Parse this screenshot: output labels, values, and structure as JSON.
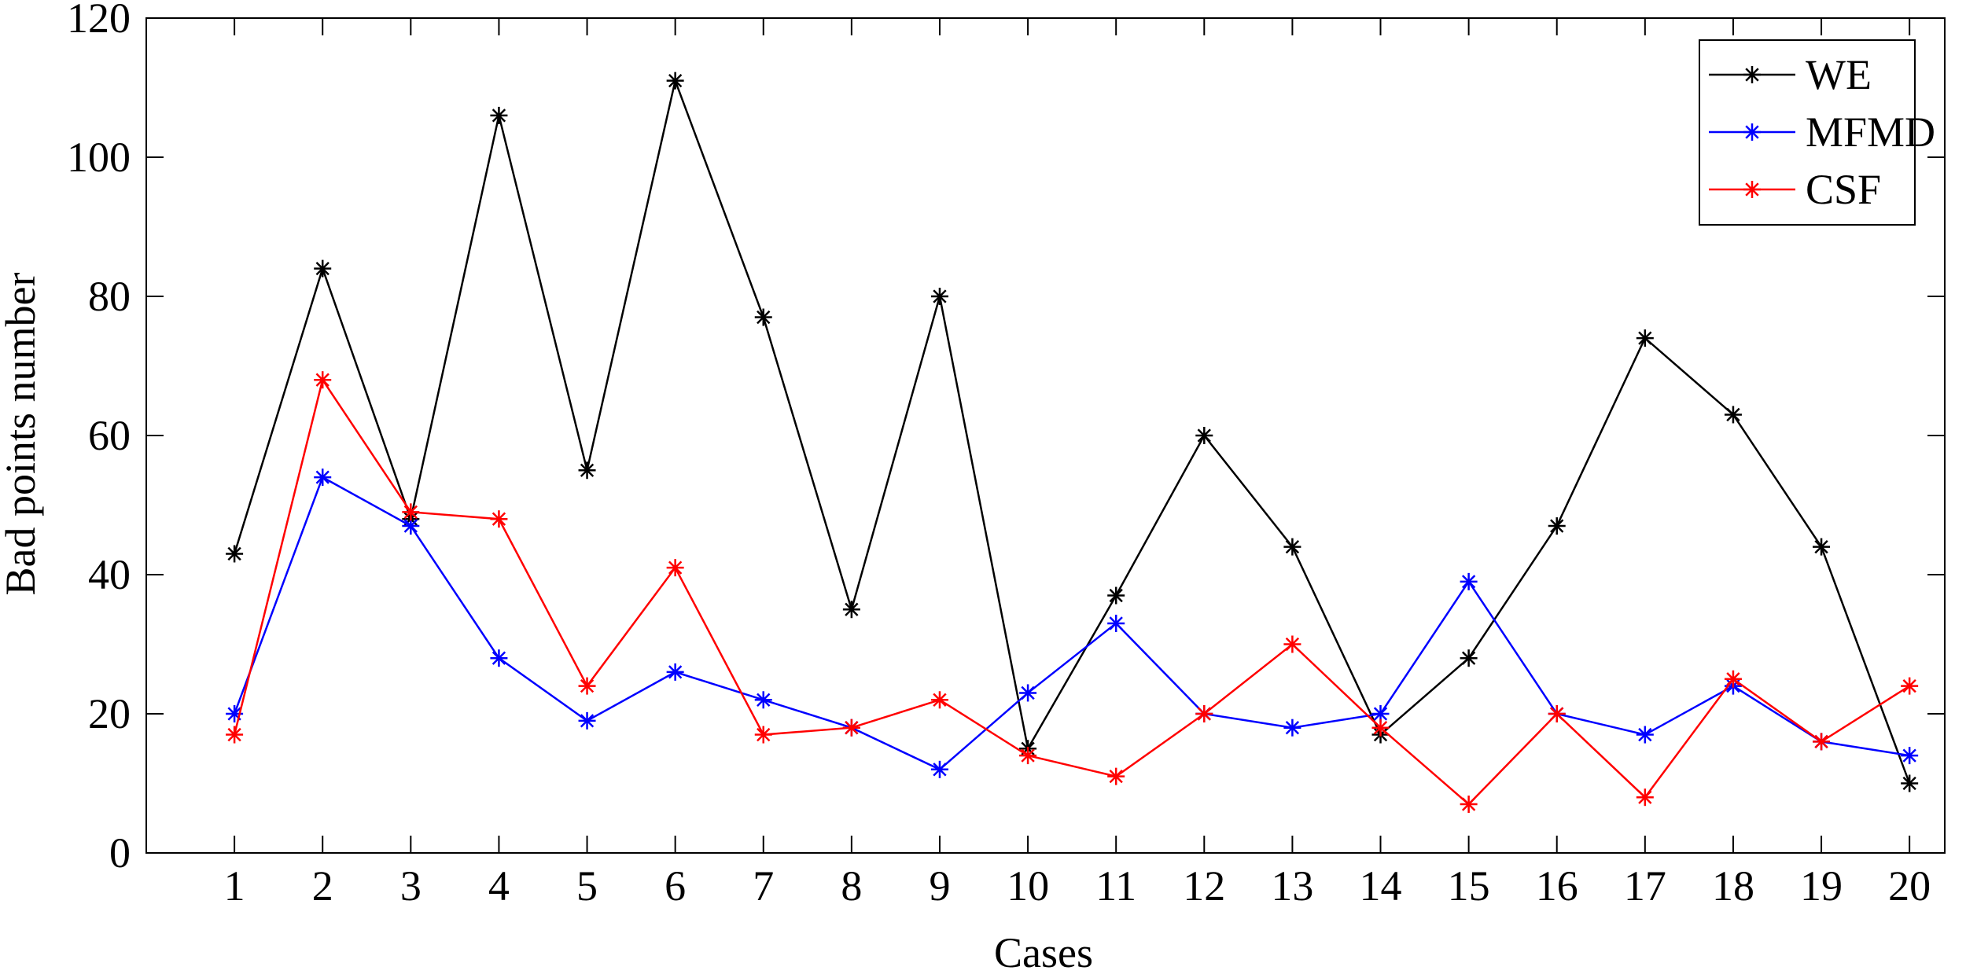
{
  "chart_data": {
    "type": "line",
    "title": "",
    "xlabel": "Cases",
    "ylabel": "Bad points number",
    "x": [
      1,
      2,
      3,
      4,
      5,
      6,
      7,
      8,
      9,
      10,
      11,
      12,
      13,
      14,
      15,
      16,
      17,
      18,
      19,
      20
    ],
    "xlim": [
      0,
      20.4
    ],
    "ylim": [
      0,
      120
    ],
    "yticks": [
      0,
      20,
      40,
      60,
      80,
      100,
      120
    ],
    "grid": false,
    "legend_position": "top-right",
    "series": [
      {
        "name": "WE",
        "color": "#000000",
        "marker": "asterisk",
        "values": [
          43,
          84,
          48,
          106,
          55,
          111,
          77,
          35,
          80,
          15,
          37,
          60,
          44,
          17,
          28,
          47,
          74,
          63,
          44,
          10
        ]
      },
      {
        "name": "MFMD",
        "color": "#0000ff",
        "marker": "asterisk",
        "values": [
          20,
          54,
          47,
          28,
          19,
          26,
          22,
          18,
          12,
          23,
          33,
          20,
          18,
          20,
          39,
          20,
          17,
          24,
          16,
          14
        ]
      },
      {
        "name": "CSF",
        "color": "#ff0000",
        "marker": "asterisk",
        "values": [
          17,
          68,
          49,
          48,
          24,
          41,
          17,
          18,
          22,
          14,
          11,
          20,
          30,
          18,
          7,
          20,
          8,
          25,
          16,
          24
        ]
      }
    ]
  }
}
